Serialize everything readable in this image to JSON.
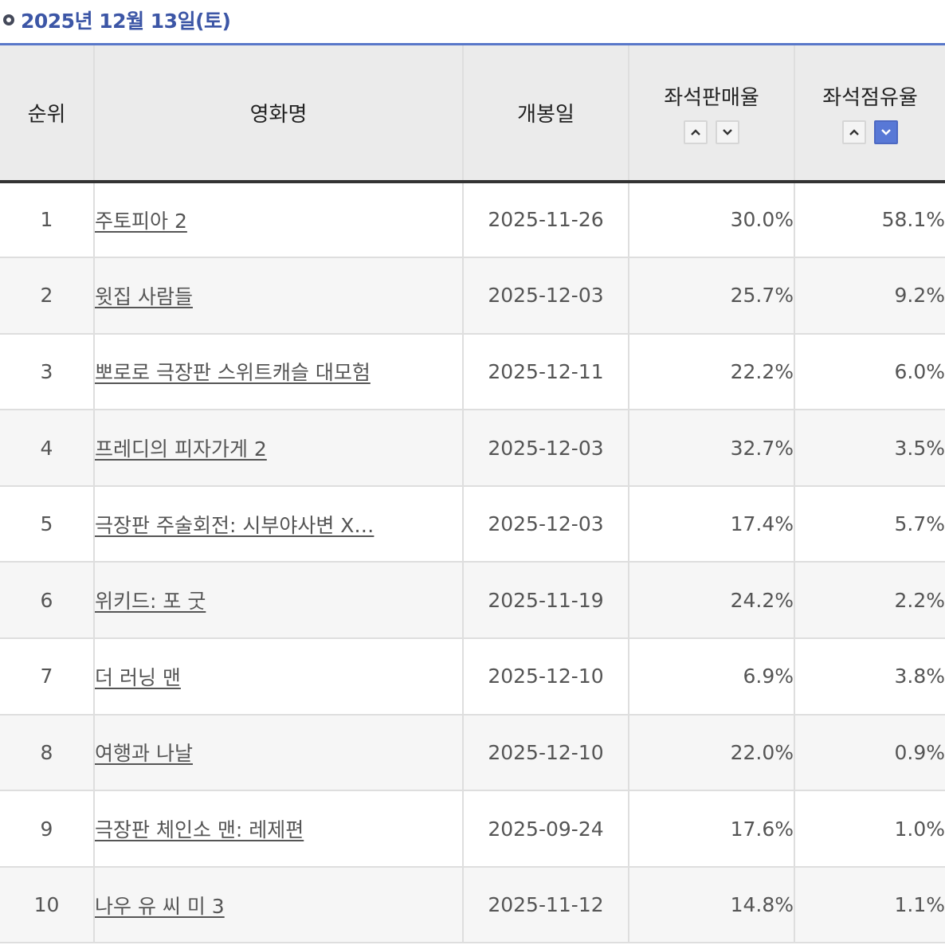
{
  "date_header": "2025년 12월 13일(토)",
  "table": {
    "headers": {
      "rank": "순위",
      "title": "영화명",
      "release": "개봉일",
      "seat_sales": "좌석판매율",
      "seat_share": "좌석점유율"
    },
    "sort": {
      "seat_sales": {
        "up": "ascending",
        "down": "descending",
        "active": "none"
      },
      "seat_share": {
        "up": "ascending",
        "down": "descending",
        "active": "down"
      }
    },
    "rows": [
      {
        "rank": "1",
        "title": "주토피아 2",
        "release": "2025-11-26",
        "seat_sales": "30.0%",
        "seat_share": "58.1%"
      },
      {
        "rank": "2",
        "title": "윗집 사람들",
        "release": "2025-12-03",
        "seat_sales": "25.7%",
        "seat_share": "9.2%"
      },
      {
        "rank": "3",
        "title": "뽀로로 극장판 스위트캐슬 대모험",
        "release": "2025-12-11",
        "seat_sales": "22.2%",
        "seat_share": "6.0%"
      },
      {
        "rank": "4",
        "title": "프레디의 피자가게 2",
        "release": "2025-12-03",
        "seat_sales": "32.7%",
        "seat_share": "3.5%"
      },
      {
        "rank": "5",
        "title": "극장판 주술회전: 시부야사변 X…",
        "release": "2025-12-03",
        "seat_sales": "17.4%",
        "seat_share": "5.7%"
      },
      {
        "rank": "6",
        "title": "위키드: 포 굿",
        "release": "2025-11-19",
        "seat_sales": "24.2%",
        "seat_share": "2.2%"
      },
      {
        "rank": "7",
        "title": "더 러닝 맨",
        "release": "2025-12-10",
        "seat_sales": "6.9%",
        "seat_share": "3.8%"
      },
      {
        "rank": "8",
        "title": "여행과 나날",
        "release": "2025-12-10",
        "seat_sales": "22.0%",
        "seat_share": "0.9%"
      },
      {
        "rank": "9",
        "title": "극장판 체인소 맨: 레제편",
        "release": "2025-09-24",
        "seat_sales": "17.6%",
        "seat_share": "1.0%"
      },
      {
        "rank": "10",
        "title": "나우 유 씨 미 3",
        "release": "2025-11-12",
        "seat_sales": "14.8%",
        "seat_share": "1.1%"
      }
    ]
  },
  "colors": {
    "date_text": "#3c56a6",
    "header_bg": "#ebebeb",
    "header_top_border": "#5877c9",
    "active_sort": "#5878d6"
  },
  "icons": {
    "bullet": "circle-bullet-icon",
    "sort_up": "chevron-up-icon",
    "sort_down": "chevron-down-icon"
  }
}
